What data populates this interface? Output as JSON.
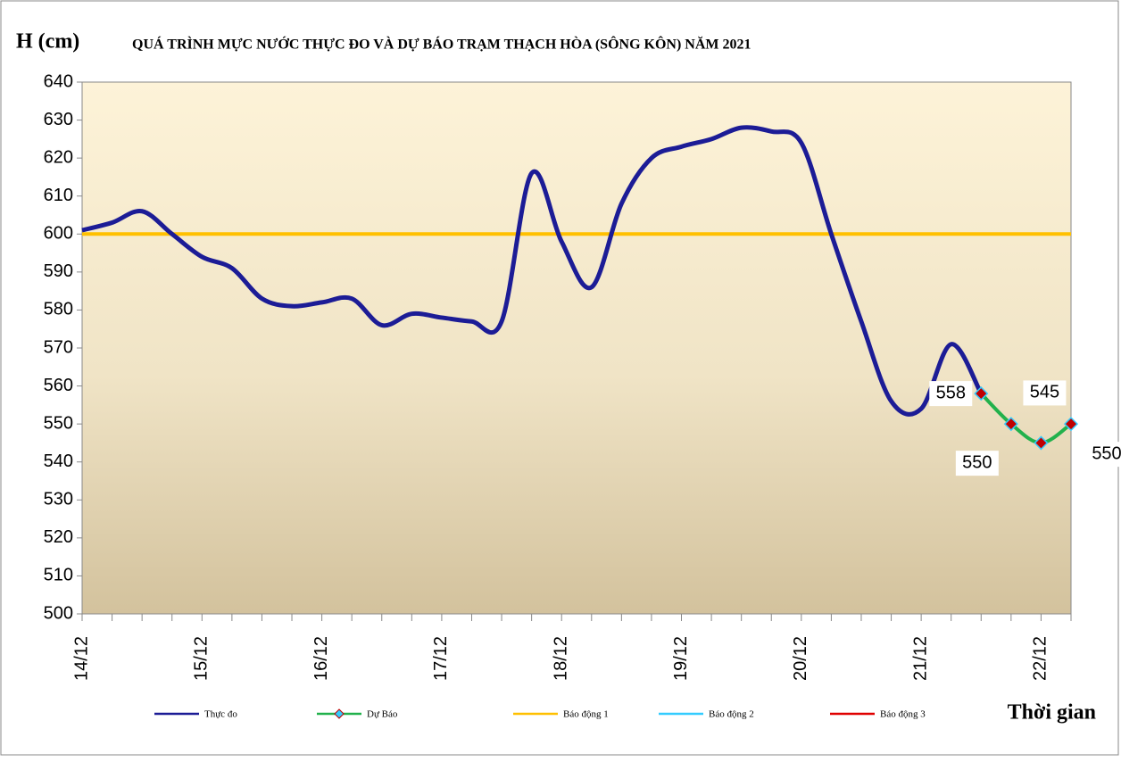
{
  "chart_data": {
    "type": "line",
    "title": "QUÁ TRÌNH MỰC NƯỚC THỰC ĐO VÀ DỰ BÁO TRẠM THẠCH HÒA (SÔNG KÔN) NĂM 2021",
    "y_label": "H (cm)",
    "x_label": "Thời gian",
    "categories": [
      "14/12",
      null,
      null,
      null,
      "15/12",
      null,
      null,
      null,
      "16/12",
      null,
      null,
      null,
      "17/12",
      null,
      null,
      null,
      "18/12",
      null,
      null,
      null,
      "19/12",
      null,
      null,
      null,
      "20/12",
      null,
      null,
      null,
      "21/12",
      null,
      null,
      null,
      "22/12",
      null
    ],
    "series": [
      {
        "name": "Thực đo",
        "color": "#1c1c96",
        "values": [
          601,
          603,
          606,
          600,
          594,
          591,
          583,
          581,
          582,
          583,
          576,
          579,
          578,
          577,
          577,
          616,
          598,
          586,
          608,
          620,
          623,
          625,
          628,
          627,
          624,
          600,
          577,
          556,
          554,
          571,
          558,
          null,
          null,
          null
        ]
      },
      {
        "name": "Dự Báo",
        "color": "#22b14c",
        "marker_color": "#c00000",
        "marker_edge": "#33ccff",
        "values": [
          null,
          null,
          null,
          null,
          null,
          null,
          null,
          null,
          null,
          null,
          null,
          null,
          null,
          null,
          null,
          null,
          null,
          null,
          null,
          null,
          null,
          null,
          null,
          null,
          null,
          null,
          null,
          null,
          null,
          null,
          558,
          550,
          545,
          550
        ]
      },
      {
        "name": "Báo động 1",
        "color": "#ffc000",
        "values": [
          600,
          600,
          600,
          600,
          600,
          600,
          600,
          600,
          600,
          600,
          600,
          600,
          600,
          600,
          600,
          600,
          600,
          600,
          600,
          600,
          600,
          600,
          600,
          600,
          600,
          600,
          600,
          600,
          600,
          600,
          600,
          600,
          600,
          600
        ]
      },
      {
        "name": "Báo động 2",
        "color": "#33ccff",
        "values": [
          null,
          null,
          null,
          null,
          null,
          null,
          null,
          null,
          null,
          null,
          null,
          null,
          null,
          null,
          null,
          null,
          null,
          null,
          null,
          null,
          null,
          null,
          null,
          null,
          null,
          null,
          null,
          null,
          null,
          null,
          null,
          null,
          null,
          null
        ]
      },
      {
        "name": "Báo động 3",
        "color": "#e00000",
        "values": [
          null,
          null,
          null,
          null,
          null,
          null,
          null,
          null,
          null,
          null,
          null,
          null,
          null,
          null,
          null,
          null,
          null,
          null,
          null,
          null,
          null,
          null,
          null,
          null,
          null,
          null,
          null,
          null,
          null,
          null,
          null,
          null,
          null,
          null
        ]
      }
    ],
    "ylim": [
      500,
      640
    ],
    "yticks": [
      500,
      510,
      520,
      530,
      540,
      550,
      560,
      570,
      580,
      590,
      600,
      610,
      620,
      630,
      640
    ]
  }
}
